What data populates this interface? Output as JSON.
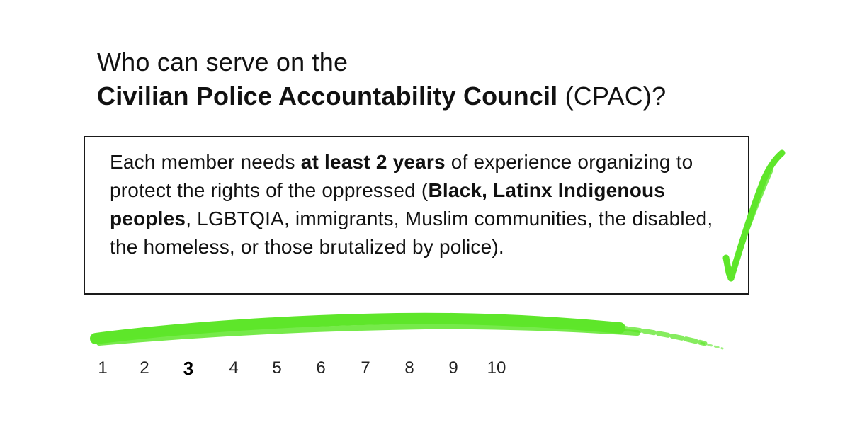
{
  "heading": {
    "line1": "Who can serve on the",
    "line2_strong": "Civilian Police Accountability Council",
    "line2_rest": " (CPAC)?"
  },
  "box": {
    "t1": "Each member needs ",
    "t2_strong": "at least 2 years",
    "t3": " of experience organizing to protect the rights of the oppressed (",
    "t4_strong": "Black, Latinx Indigenous peoples",
    "t5": ", LGBTQIA, immigrants, Muslim communities, the disabled, the homeless, or those brutalized by police)."
  },
  "accent_color": "#5ee62a",
  "icons": {
    "checkmark": "checkmark-icon",
    "brush_stroke": "brush-stroke"
  },
  "pagination": {
    "pages": [
      "1",
      "2",
      "3",
      "4",
      "5",
      "6",
      "7",
      "8",
      "9",
      "10"
    ],
    "current": "3"
  }
}
